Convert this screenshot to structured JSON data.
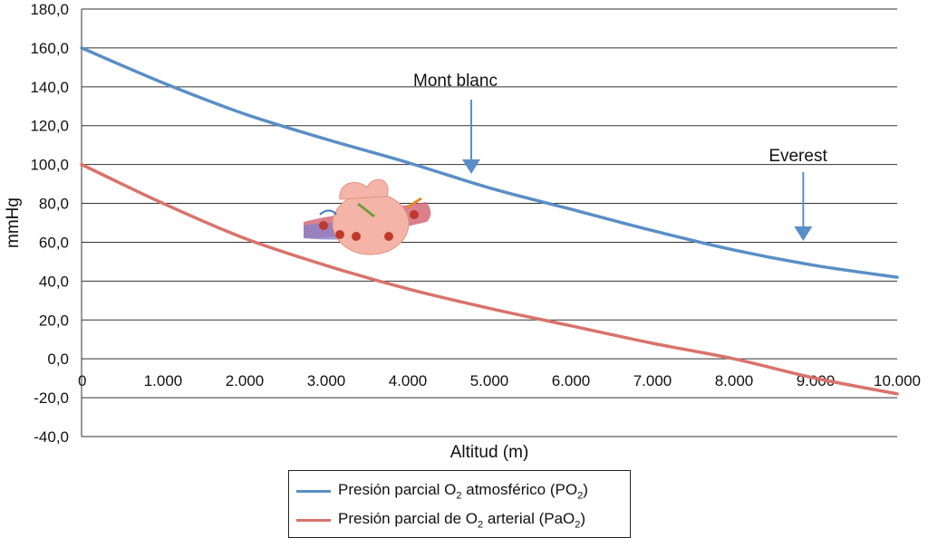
{
  "chart_data": {
    "type": "line",
    "xlabel": "Altitud (m)",
    "ylabel": "mmHg",
    "xlim": [
      0,
      10000
    ],
    "ylim": [
      -40,
      180
    ],
    "x_ticks": [
      0,
      1000,
      2000,
      3000,
      4000,
      5000,
      6000,
      7000,
      8000,
      9000,
      10000
    ],
    "x_tick_labels": [
      "0",
      "1.000",
      "2.000",
      "3.000",
      "4.000",
      "5.000",
      "6.000",
      "7.000",
      "8.000",
      "9.000",
      "10.000"
    ],
    "y_ticks": [
      -40,
      -20,
      0,
      20,
      40,
      60,
      80,
      100,
      120,
      140,
      160,
      180
    ],
    "y_tick_labels": [
      "-40,0",
      "-20,0",
      "0,0",
      "20,0",
      "40,0",
      "60,0",
      "80,0",
      "100,0",
      "120,0",
      "140,0",
      "160,0",
      "180,0"
    ],
    "grid": "horizontal",
    "x": [
      0,
      1000,
      2000,
      3000,
      4000,
      5000,
      6000,
      7000,
      8000,
      9000,
      10000
    ],
    "series": [
      {
        "name": "Presión parcial O2 atmosférico (PO2)",
        "color": "#5a8ec6",
        "values": [
          160,
          142,
          126,
          113,
          101,
          88,
          77,
          66,
          56,
          48,
          42
        ]
      },
      {
        "name": "Presión parcial de O2 arterial (PaO2)",
        "color": "#d9736b",
        "values": [
          100,
          80,
          62,
          48,
          36,
          26,
          17,
          8,
          0,
          -10,
          -18
        ]
      }
    ],
    "annotations": [
      {
        "text": "Mont blanc",
        "x": 4800,
        "y": 90,
        "color": "#5a8ec6"
      },
      {
        "text": "Everest",
        "x": 8848,
        "y": 60,
        "color": "#5a8ec6"
      }
    ],
    "legend_position": "bottom"
  },
  "legend": {
    "items": [
      {
        "color": "#5a8ec6",
        "pre": "Presión parcial O",
        "sub1": "2",
        "mid": " atmosférico (PO",
        "sub2": "2",
        "post": ")"
      },
      {
        "color": "#d9736b",
        "pre": "Presión parcial de O",
        "sub1": "2",
        "mid": " arterial (PaO",
        "sub2": "2",
        "post": ")"
      }
    ]
  }
}
